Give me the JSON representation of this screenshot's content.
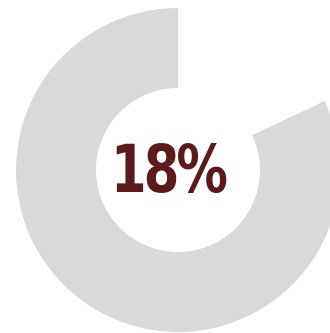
{
  "chart_data": {
    "type": "pie",
    "style": "donut",
    "center_label": "18%",
    "slices": [
      {
        "value": 18,
        "color": "#ffffff"
      },
      {
        "value": 82,
        "color": "#d9d9d9"
      }
    ],
    "label_color": "#5c1a1a"
  }
}
